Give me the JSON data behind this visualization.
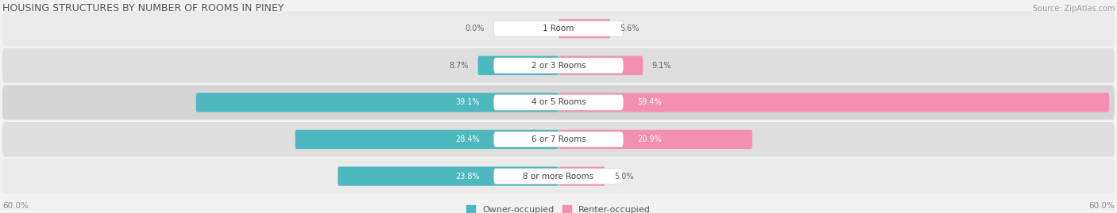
{
  "title": "HOUSING STRUCTURES BY NUMBER OF ROOMS IN PINEY",
  "source": "Source: ZipAtlas.com",
  "categories": [
    "1 Room",
    "2 or 3 Rooms",
    "4 or 5 Rooms",
    "6 or 7 Rooms",
    "8 or more Rooms"
  ],
  "owner_values": [
    0.0,
    8.7,
    39.1,
    28.4,
    23.8
  ],
  "renter_values": [
    5.6,
    9.1,
    59.4,
    20.9,
    5.0
  ],
  "max_val": 60.0,
  "owner_color": "#4db8c0",
  "renter_color": "#f48fb1",
  "row_bg_colors": [
    "#ebebeb",
    "#e0e0e0",
    "#d6d6d6",
    "#e0e0e0",
    "#ebebeb"
  ],
  "title_fontsize": 9,
  "source_fontsize": 7,
  "label_fontsize": 7.5,
  "value_fontsize": 7,
  "legend_fontsize": 8,
  "axis_label_fontsize": 7.5
}
